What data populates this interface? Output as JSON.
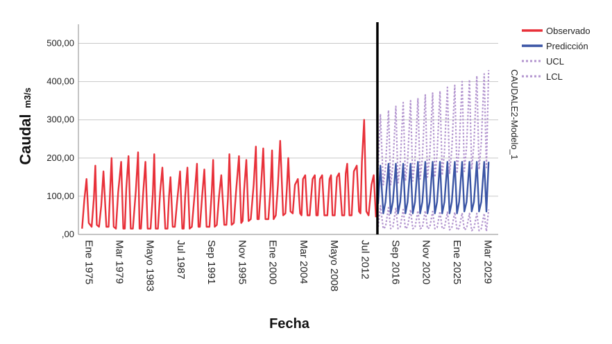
{
  "chart_data": {
    "type": "line",
    "title": "",
    "xlabel": "Fecha",
    "ylabel_main": "Caudal",
    "ylabel_unit": "m3/s",
    "model_label": "CAUDALE2-Modelo_1",
    "ylim": [
      0,
      550
    ],
    "y_ticks": [
      0,
      100,
      200,
      300,
      400,
      500
    ],
    "y_tick_labels": [
      ",00",
      "100,00",
      "200,00",
      "300,00",
      "400,00",
      "500,00"
    ],
    "x_range": [
      1974.5,
      2031.5
    ],
    "x_ticks": [
      1975,
      1979.17,
      1983.33,
      1987.5,
      1991.67,
      1995.83,
      2000,
      2004.17,
      2008.33,
      2012.5,
      2016.67,
      2020.83,
      2025,
      2029.17
    ],
    "x_tick_labels": [
      "Ene 1975",
      "Mar 1979",
      "Mayo 1983",
      "Jul 1987",
      "Sep 1991",
      "Nov 1995",
      "Ene 2000",
      "Mar 2004",
      "Mayo 2008",
      "Jul 2012",
      "Sep 2016",
      "Nov 2020",
      "Ene 2025",
      "Mar 2029"
    ],
    "forecast_start": 2015.1,
    "grid": true,
    "legend_position": "top-right",
    "series": [
      {
        "name": "Observado",
        "color": "#e8313a",
        "style": "solid",
        "x": [
          1975.0,
          1975.3,
          1975.6,
          1975.9,
          1976.3,
          1976.6,
          1976.8,
          1977.0,
          1977.3,
          1977.6,
          1977.9,
          1978.3,
          1978.6,
          1978.8,
          1979.0,
          1979.3,
          1979.6,
          1979.9,
          1980.3,
          1980.6,
          1980.8,
          1981.0,
          1981.3,
          1981.6,
          1981.9,
          1982.3,
          1982.6,
          1982.8,
          1983.0,
          1983.3,
          1983.6,
          1983.9,
          1984.3,
          1984.6,
          1984.8,
          1985.0,
          1985.3,
          1985.6,
          1985.9,
          1986.3,
          1986.6,
          1986.8,
          1987.0,
          1987.3,
          1987.6,
          1987.9,
          1988.3,
          1988.6,
          1988.8,
          1989.0,
          1989.3,
          1989.6,
          1989.9,
          1990.3,
          1990.6,
          1990.8,
          1991.0,
          1991.3,
          1991.6,
          1991.9,
          1992.3,
          1992.6,
          1992.8,
          1993.0,
          1993.3,
          1993.6,
          1993.9,
          1994.3,
          1994.6,
          1994.8,
          1995.0,
          1995.3,
          1995.6,
          1995.9,
          1996.3,
          1996.6,
          1996.8,
          1997.0,
          1997.3,
          1997.6,
          1997.9,
          1998.3,
          1998.6,
          1998.8,
          1999.0,
          1999.3,
          1999.6,
          1999.9,
          2000.3,
          2000.6,
          2000.8,
          2001.0,
          2001.3,
          2001.6,
          2001.9,
          2002.3,
          2002.6,
          2002.8,
          2003.0,
          2003.3,
          2003.6,
          2003.9,
          2004.3,
          2004.6,
          2004.8,
          2005.0,
          2005.3,
          2005.6,
          2005.9,
          2006.3,
          2006.6,
          2006.8,
          2007.0,
          2007.3,
          2007.6,
          2007.9,
          2008.3,
          2008.6,
          2008.8,
          2009.0,
          2009.3,
          2009.6,
          2009.9,
          2010.3,
          2010.6,
          2010.8,
          2011.0,
          2011.3,
          2011.6,
          2011.9,
          2012.3,
          2012.6,
          2012.8,
          2013.0,
          2013.3,
          2013.6,
          2013.9,
          2014.3,
          2014.6,
          2014.9
        ],
        "y": [
          15,
          90,
          145,
          30,
          20,
          95,
          180,
          25,
          20,
          75,
          165,
          20,
          20,
          110,
          200,
          20,
          15,
          110,
          190,
          15,
          15,
          120,
          205,
          15,
          15,
          115,
          215,
          15,
          15,
          110,
          190,
          15,
          15,
          105,
          210,
          15,
          15,
          110,
          175,
          15,
          15,
          100,
          150,
          20,
          20,
          85,
          165,
          15,
          15,
          100,
          175,
          15,
          20,
          110,
          185,
          20,
          20,
          100,
          170,
          20,
          20,
          110,
          195,
          20,
          25,
          100,
          155,
          25,
          25,
          95,
          210,
          25,
          30,
          110,
          205,
          30,
          35,
          115,
          195,
          35,
          40,
          130,
          230,
          40,
          40,
          125,
          225,
          40,
          40,
          125,
          220,
          40,
          50,
          130,
          245,
          50,
          55,
          120,
          200,
          60,
          55,
          130,
          145,
          55,
          50,
          145,
          155,
          50,
          50,
          145,
          155,
          50,
          50,
          145,
          155,
          50,
          50,
          145,
          155,
          50,
          50,
          150,
          160,
          50,
          50,
          160,
          185,
          50,
          50,
          165,
          180,
          60,
          55,
          190,
          300,
          60,
          50,
          130,
          155,
          45
        ]
      },
      {
        "name": "Predicción",
        "color": "#3b55a5",
        "style": "solid",
        "x": [
          2015.2,
          2015.5,
          2015.9,
          2016.2,
          2016.6,
          2016.9,
          2017.2,
          2017.6,
          2017.9,
          2018.2,
          2018.6,
          2018.9,
          2019.2,
          2019.6,
          2019.9,
          2020.2,
          2020.6,
          2020.9,
          2021.2,
          2021.6,
          2021.9,
          2022.2,
          2022.6,
          2022.9,
          2023.2,
          2023.6,
          2023.9,
          2024.2,
          2024.6,
          2024.9,
          2025.2,
          2025.6,
          2025.9,
          2026.2,
          2026.6,
          2026.9,
          2027.2,
          2027.6,
          2027.9,
          2028.2,
          2028.6,
          2028.9,
          2029.2,
          2029.6,
          2029.9,
          2030.2
        ],
        "y": [
          80,
          180,
          55,
          85,
          185,
          55,
          85,
          185,
          55,
          85,
          185,
          55,
          85,
          185,
          55,
          85,
          190,
          55,
          85,
          190,
          55,
          85,
          190,
          55,
          85,
          190,
          55,
          85,
          190,
          55,
          85,
          190,
          55,
          85,
          190,
          60,
          85,
          190,
          60,
          85,
          190,
          60,
          85,
          190,
          60,
          190
        ]
      },
      {
        "name": "UCL",
        "color": "#b395cf",
        "style": "dotted",
        "x": [
          2015.2,
          2015.5,
          2015.9,
          2016.2,
          2016.6,
          2016.9,
          2017.2,
          2017.6,
          2017.9,
          2018.2,
          2018.6,
          2018.9,
          2019.2,
          2019.6,
          2019.9,
          2020.2,
          2020.6,
          2020.9,
          2021.2,
          2021.6,
          2021.9,
          2022.2,
          2022.6,
          2022.9,
          2023.2,
          2023.6,
          2023.9,
          2024.2,
          2024.6,
          2024.9,
          2025.2,
          2025.6,
          2025.9,
          2026.2,
          2026.6,
          2026.9,
          2027.2,
          2027.6,
          2027.9,
          2028.2,
          2028.6,
          2028.9,
          2029.2,
          2029.6,
          2029.9,
          2030.2
        ],
        "y": [
          170,
          315,
          130,
          175,
          325,
          130,
          180,
          335,
          135,
          185,
          345,
          140,
          190,
          350,
          140,
          195,
          355,
          145,
          200,
          365,
          150,
          205,
          370,
          150,
          210,
          375,
          155,
          215,
          385,
          160,
          220,
          390,
          160,
          225,
          400,
          165,
          230,
          405,
          170,
          235,
          415,
          170,
          240,
          420,
          175,
          430
        ]
      },
      {
        "name": "LCL",
        "color": "#b395cf",
        "style": "dotted",
        "x": [
          2015.2,
          2015.5,
          2015.9,
          2016.2,
          2016.6,
          2016.9,
          2017.2,
          2017.6,
          2017.9,
          2018.2,
          2018.6,
          2018.9,
          2019.2,
          2019.6,
          2019.9,
          2020.2,
          2020.6,
          2020.9,
          2021.2,
          2021.6,
          2021.9,
          2022.2,
          2022.6,
          2022.9,
          2023.2,
          2023.6,
          2023.9,
          2024.2,
          2024.6,
          2024.9,
          2025.2,
          2025.6,
          2025.9,
          2026.2,
          2026.6,
          2026.9,
          2027.2,
          2027.6,
          2027.9,
          2028.2,
          2028.6,
          2028.9,
          2029.2,
          2029.6,
          2029.9,
          2030.2
        ],
        "y": [
          20,
          75,
          15,
          20,
          70,
          15,
          20,
          68,
          15,
          20,
          65,
          15,
          20,
          65,
          15,
          18,
          62,
          15,
          18,
          62,
          15,
          18,
          60,
          15,
          18,
          60,
          15,
          17,
          58,
          12,
          17,
          58,
          12,
          16,
          56,
          12,
          16,
          55,
          10,
          15,
          55,
          10,
          15,
          55,
          8,
          65
        ]
      }
    ]
  }
}
